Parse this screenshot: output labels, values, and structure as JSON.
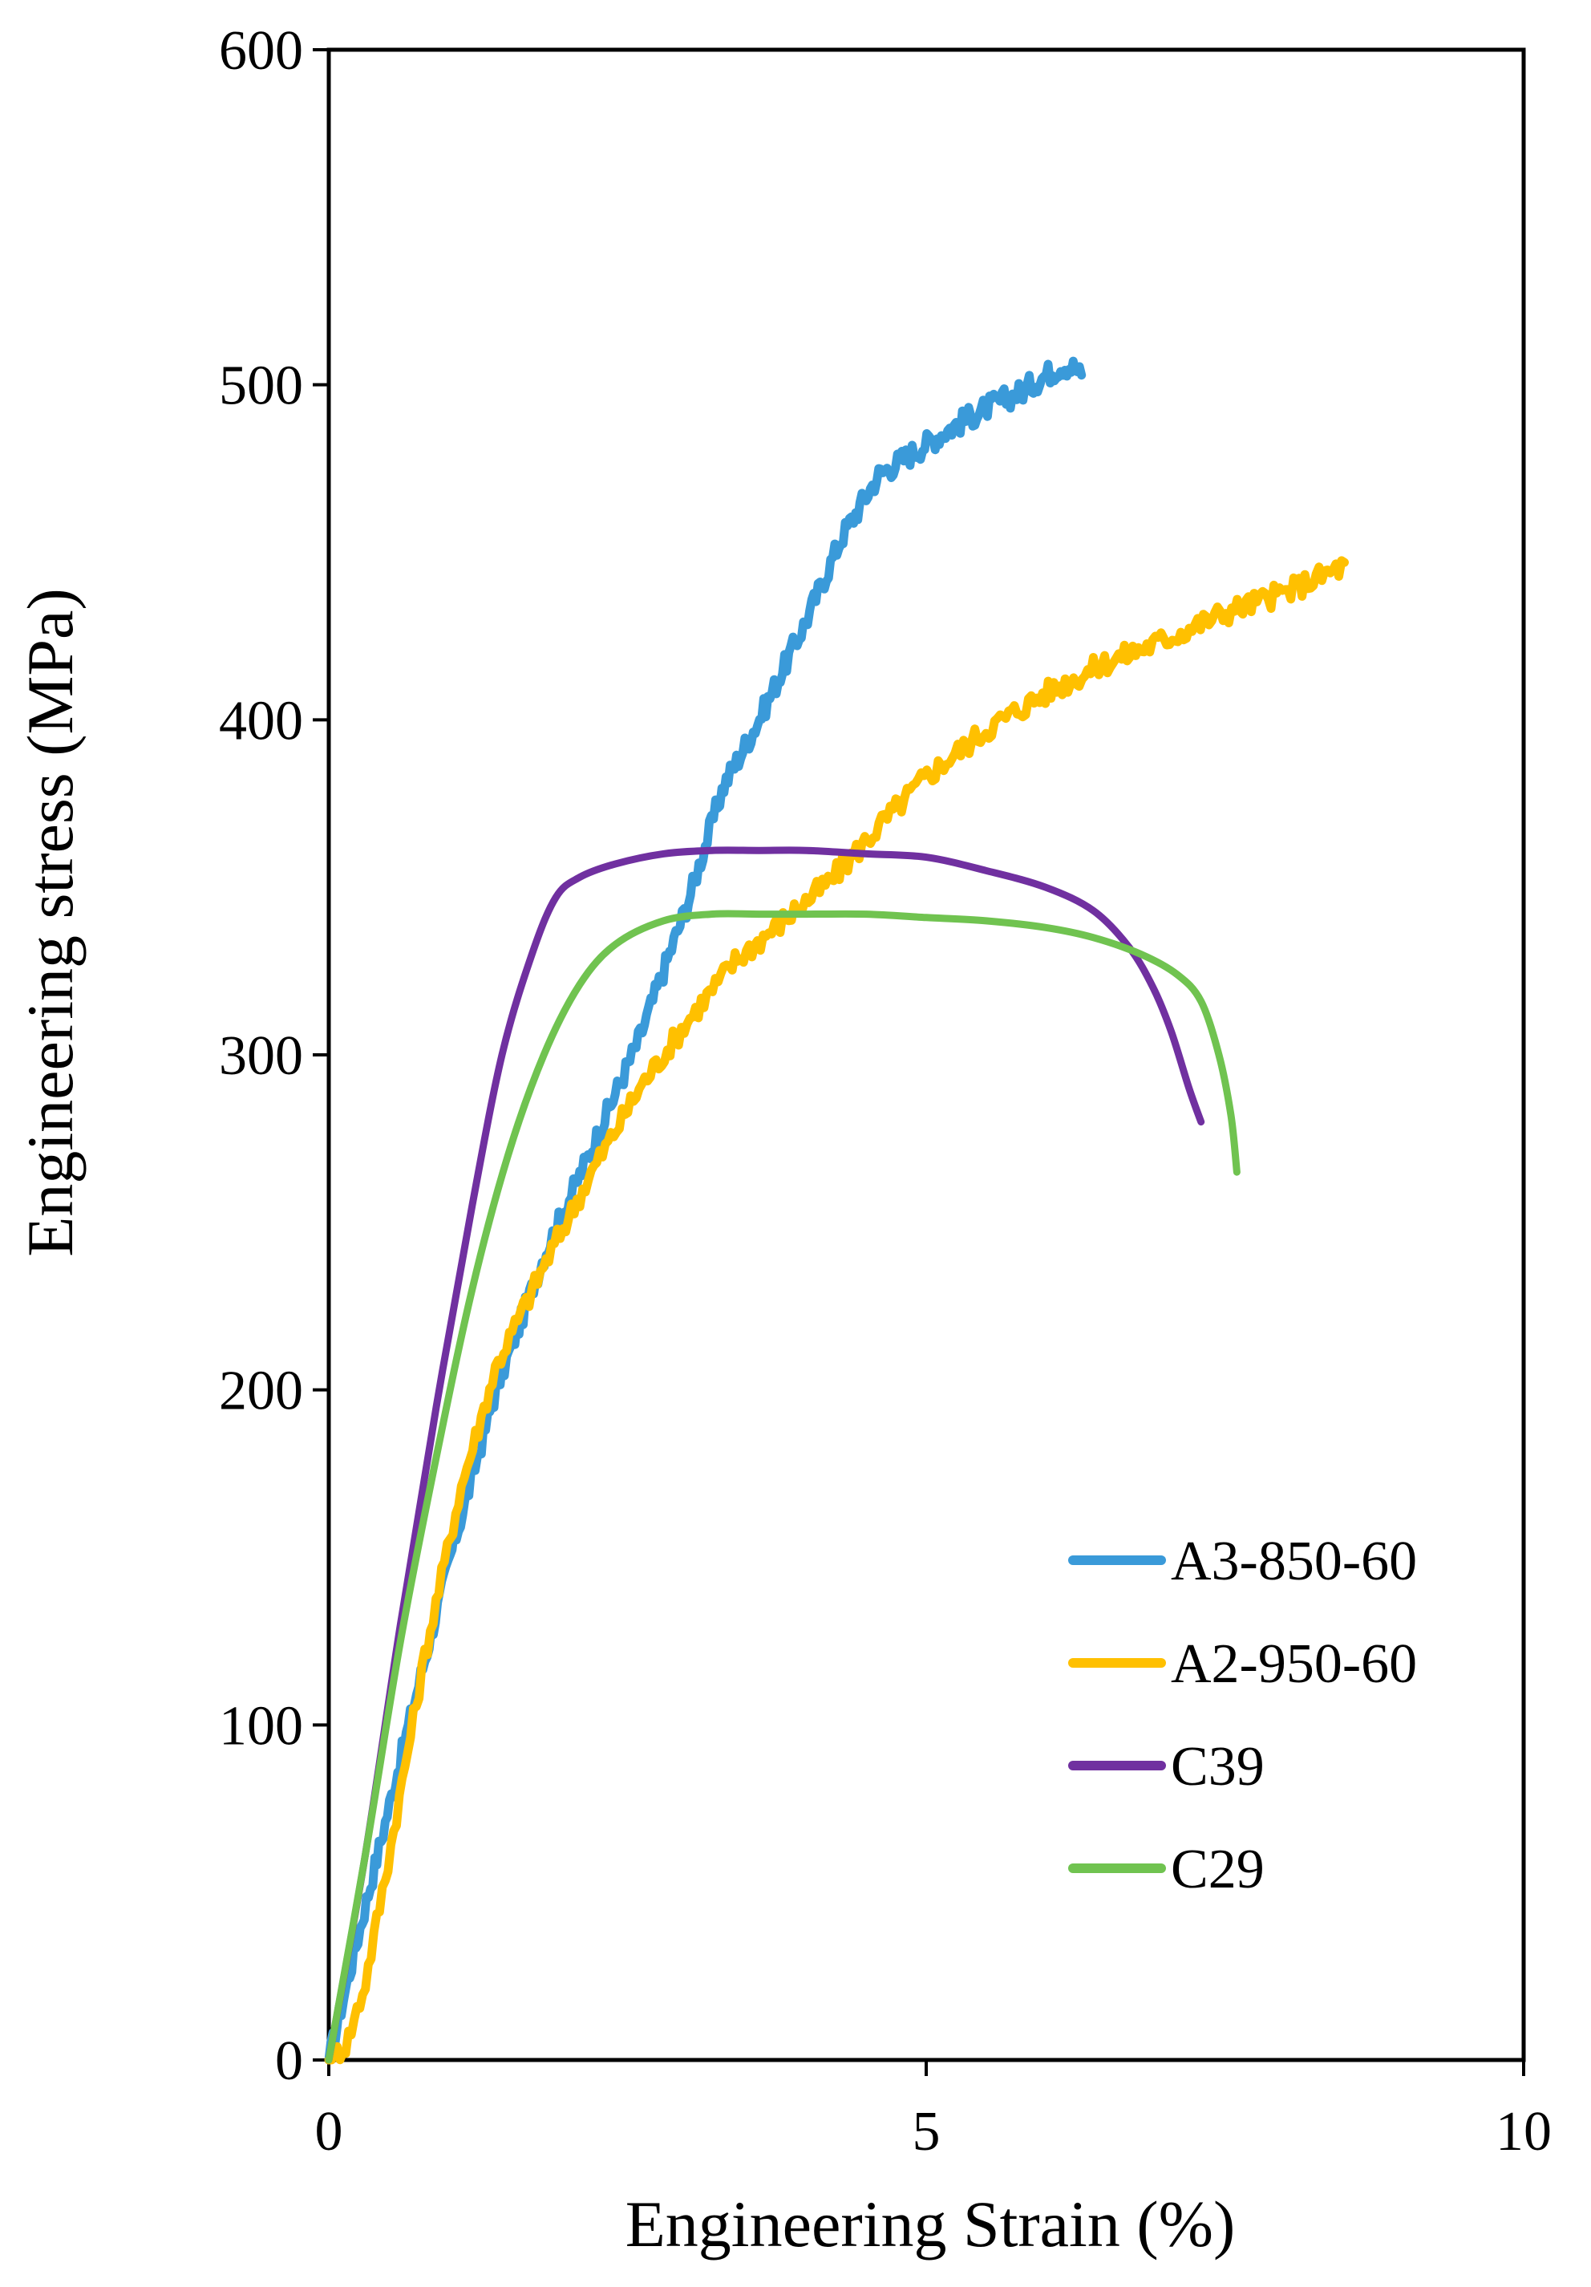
{
  "chart_data": {
    "type": "line",
    "title": "",
    "xlabel": "Engineering Strain (%)",
    "ylabel": "Engineering stress (MPa)",
    "xlim": [
      0,
      10
    ],
    "ylim": [
      0,
      600
    ],
    "xticks": [
      0,
      5,
      10
    ],
    "xtick_labels": [
      "0",
      "5",
      "10"
    ],
    "yticks": [
      0,
      100,
      200,
      300,
      400,
      500,
      600
    ],
    "ytick_labels": [
      "0",
      "100",
      "200",
      "300",
      "400",
      "500",
      "600"
    ],
    "grid": false,
    "legend_position": "bottom-right",
    "series": [
      {
        "name": "A3-850-60",
        "color": "#3a9ad9",
        "noisy": true,
        "x": [
          0,
          0.3,
          0.6,
          1.0,
          1.4,
          1.8,
          2.2,
          2.6,
          3.0,
          3.3,
          3.6,
          4.0,
          4.3,
          4.6,
          4.9,
          5.2,
          5.5,
          5.8,
          6.0,
          6.15,
          6.25,
          6.3
        ],
        "y": [
          0,
          45,
          90,
          148,
          200,
          240,
          272,
          305,
          345,
          380,
          400,
          430,
          455,
          473,
          480,
          487,
          493,
          498,
          503,
          506,
          505,
          502
        ]
      },
      {
        "name": "A2-950-60",
        "color": "#ffc000",
        "noisy": true,
        "x": [
          0,
          0.15,
          0.3,
          0.5,
          0.8,
          1.1,
          1.4,
          1.8,
          2.2,
          2.6,
          3.0,
          3.4,
          3.8,
          4.2,
          4.6,
          5.0,
          5.5,
          6.0,
          6.5,
          7.0,
          7.5,
          8.0,
          8.5
        ],
        "y": [
          0,
          5,
          22,
          60,
          120,
          170,
          207,
          237,
          265,
          290,
          310,
          328,
          340,
          352,
          368,
          383,
          397,
          408,
          417,
          424,
          432,
          438,
          446
        ]
      },
      {
        "name": "C39",
        "color": "#7030a0",
        "noisy": false,
        "x": [
          0,
          0.3,
          0.6,
          0.9,
          1.2,
          1.45,
          1.7,
          1.9,
          2.1,
          2.4,
          2.8,
          3.2,
          3.6,
          4.0,
          4.5,
          5.0,
          5.5,
          6.0,
          6.4,
          6.7,
          6.9,
          7.05,
          7.2,
          7.3
        ],
        "y": [
          0,
          60,
          130,
          195,
          255,
          300,
          330,
          347,
          353,
          357,
          360,
          361,
          361,
          361,
          360,
          359,
          355,
          350,
          343,
          332,
          320,
          307,
          290,
          280
        ]
      },
      {
        "name": "C29",
        "color": "#70c350",
        "noisy": false,
        "x": [
          0,
          0.3,
          0.6,
          0.9,
          1.2,
          1.5,
          1.8,
          2.1,
          2.4,
          2.8,
          3.2,
          3.6,
          4.0,
          4.5,
          5.0,
          5.5,
          6.0,
          6.4,
          6.8,
          7.1,
          7.3,
          7.45,
          7.55,
          7.6
        ],
        "y": [
          0,
          60,
          125,
          180,
          230,
          270,
          300,
          321,
          333,
          340,
          342,
          342,
          342,
          342,
          341,
          340,
          338,
          335,
          330,
          324,
          316,
          300,
          282,
          265
        ]
      }
    ]
  }
}
